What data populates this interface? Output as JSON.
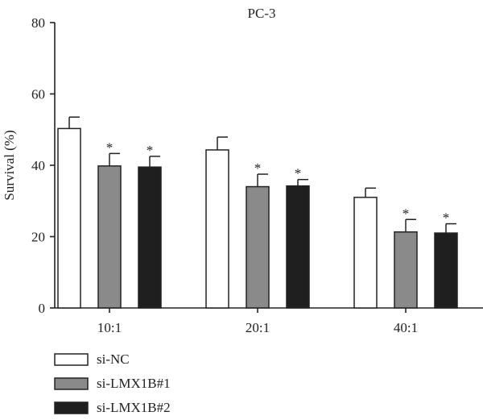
{
  "chart_data": {
    "type": "bar",
    "title": "PC-3",
    "xlabel": "",
    "ylabel": "Survival (%)",
    "ylim": [
      0,
      80
    ],
    "yticks": [
      0,
      20,
      40,
      60,
      80
    ],
    "categories": [
      "10:1",
      "20:1",
      "40:1"
    ],
    "series": [
      {
        "name": "si-NC",
        "values": [
          50.3,
          44.3,
          31.0
        ],
        "errors": [
          3.2,
          3.6,
          2.6
        ],
        "significant": [
          false,
          false,
          false
        ],
        "color": "#ffffff"
      },
      {
        "name": "si-LMX1B#1",
        "values": [
          39.8,
          34.0,
          21.3
        ],
        "errors": [
          3.5,
          3.5,
          3.5
        ],
        "significant": [
          true,
          true,
          true
        ],
        "color": "#8a8a8a"
      },
      {
        "name": "si-LMX1B#2",
        "values": [
          39.5,
          34.2,
          21.0
        ],
        "errors": [
          3.0,
          1.8,
          2.6
        ],
        "significant": [
          true,
          true,
          true
        ],
        "color": "#1f1f1f"
      }
    ],
    "significance_marker": "*",
    "legend_position": "bottom-left"
  }
}
